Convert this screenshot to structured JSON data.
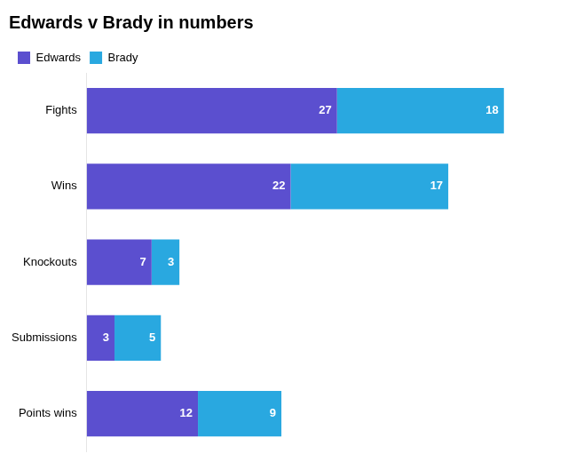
{
  "chart_data": {
    "type": "bar",
    "title": "Edwards v Brady in numbers",
    "orientation": "horizontal",
    "stacked": true,
    "categories": [
      "Fights",
      "Wins",
      "Knockouts",
      "Submissions",
      "Points wins"
    ],
    "series": [
      {
        "name": "Edwards",
        "color": "#5B4FCF",
        "values": [
          27,
          22,
          7,
          3,
          12
        ]
      },
      {
        "name": "Brady",
        "color": "#29A8E0",
        "values": [
          18,
          17,
          3,
          5,
          9
        ]
      }
    ],
    "xlim": [
      0,
      50
    ],
    "xticks": [
      0,
      10,
      20,
      30,
      40,
      50
    ],
    "grid": false,
    "legend": "upper left",
    "data_labels": true,
    "tick_labels": "y"
  }
}
